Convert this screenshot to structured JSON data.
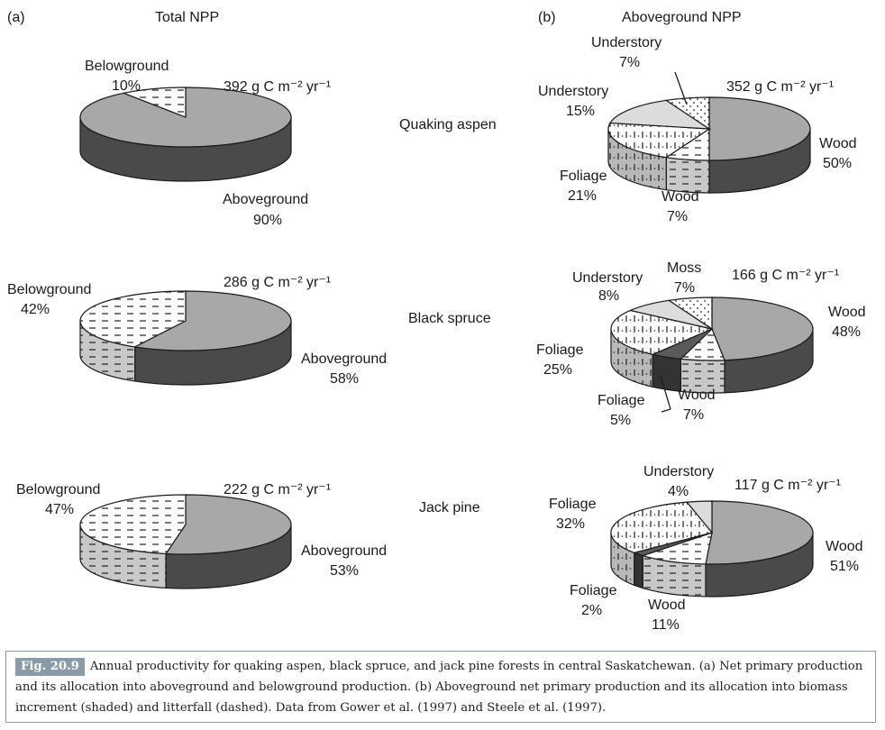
{
  "panel_a": {
    "label": "(a)",
    "title": "Total NPP"
  },
  "panel_b": {
    "label": "(b)",
    "title": "Aboveground NPP"
  },
  "stands": [
    {
      "name": "Quaking aspen"
    },
    {
      "name": "Black spruce"
    },
    {
      "name": "Jack pine"
    }
  ],
  "colors": {
    "gray": "#a8a8a8",
    "gray_side": "#4a4a4a",
    "light": "#dcdcdc",
    "dark": "#5a5a5a",
    "outline": "#1a1a1a"
  },
  "chart_data": [
    {
      "type": "pie",
      "panel": "a",
      "stand": "Quaking aspen",
      "total_label": "392 g C m⁻² yr⁻¹",
      "slices": [
        {
          "label": "Aboveground",
          "pct_label": "90%",
          "value": 90,
          "fill": "gray"
        },
        {
          "label": "Belowground",
          "pct_label": "10%",
          "value": 10,
          "fill": "dashed"
        }
      ]
    },
    {
      "type": "pie",
      "panel": "a",
      "stand": "Black spruce",
      "total_label": "286 g C m⁻² yr⁻¹",
      "slices": [
        {
          "label": "Aboveground",
          "pct_label": "58%",
          "value": 58,
          "fill": "gray"
        },
        {
          "label": "Belowground",
          "pct_label": "42%",
          "value": 42,
          "fill": "dashed"
        }
      ]
    },
    {
      "type": "pie",
      "panel": "a",
      "stand": "Jack pine",
      "total_label": "222 g C m⁻² yr⁻¹",
      "slices": [
        {
          "label": "Aboveground",
          "pct_label": "53%",
          "value": 53,
          "fill": "gray"
        },
        {
          "label": "Belowground",
          "pct_label": "47%",
          "value": 47,
          "fill": "dashed"
        }
      ]
    },
    {
      "type": "pie",
      "panel": "b",
      "stand": "Quaking aspen",
      "total_label": "352 g C m⁻² yr⁻¹",
      "slices": [
        {
          "label": "Wood",
          "pct_label": "50%",
          "value": 50,
          "fill": "gray"
        },
        {
          "label": "Wood",
          "pct_label": "7%",
          "value": 7,
          "fill": "dashed"
        },
        {
          "label": "Foliage",
          "pct_label": "21%",
          "value": 21,
          "fill": "ticks"
        },
        {
          "label": "Understory",
          "pct_label": "15%",
          "value": 15,
          "fill": "light"
        },
        {
          "label": "Understory",
          "pct_label": "7%",
          "value": 7,
          "fill": "dots"
        }
      ]
    },
    {
      "type": "pie",
      "panel": "b",
      "stand": "Black spruce",
      "total_label": "166 g C m⁻² yr⁻¹",
      "slices": [
        {
          "label": "Wood",
          "pct_label": "48%",
          "value": 48,
          "fill": "gray"
        },
        {
          "label": "Wood",
          "pct_label": "7%",
          "value": 7,
          "fill": "dashed"
        },
        {
          "label": "Foliage",
          "pct_label": "5%",
          "value": 5,
          "fill": "dark"
        },
        {
          "label": "Foliage",
          "pct_label": "25%",
          "value": 25,
          "fill": "ticks"
        },
        {
          "label": "Understory",
          "pct_label": "8%",
          "value": 8,
          "fill": "light"
        },
        {
          "label": "Moss",
          "pct_label": "7%",
          "value": 7,
          "fill": "dots"
        }
      ]
    },
    {
      "type": "pie",
      "panel": "b",
      "stand": "Jack pine",
      "total_label": "117 g C m⁻² yr⁻¹",
      "slices": [
        {
          "label": "Wood",
          "pct_label": "51%",
          "value": 51,
          "fill": "gray"
        },
        {
          "label": "Wood",
          "pct_label": "11%",
          "value": 11,
          "fill": "dashed"
        },
        {
          "label": "Foliage",
          "pct_label": "2%",
          "value": 2,
          "fill": "dark"
        },
        {
          "label": "Foliage",
          "pct_label": "32%",
          "value": 32,
          "fill": "ticks"
        },
        {
          "label": "Understory",
          "pct_label": "4%",
          "value": 4,
          "fill": "light"
        }
      ]
    }
  ],
  "caption": {
    "badge": "Fig. 20.9",
    "text": "Annual productivity for quaking aspen, black spruce, and jack pine forests in central Saskatchewan. (a) Net primary production and its allocation into aboveground and belowground production. (b) Aboveground net primary production and its allocation into biomass increment (shaded) and litterfall (dashed). Data from Gower et al. (1997) and Steele et al. (1997)."
  }
}
